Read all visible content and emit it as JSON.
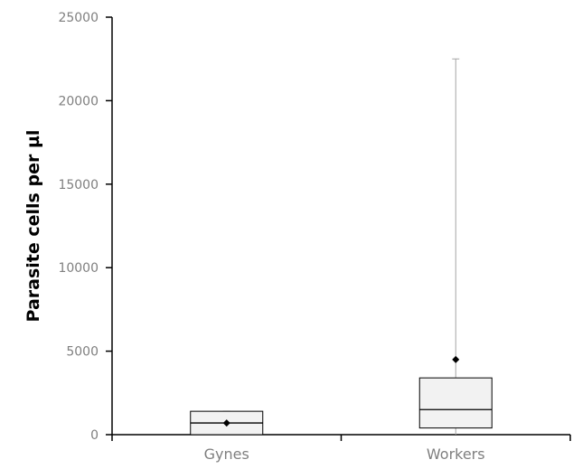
{
  "chart_data": {
    "type": "box",
    "title": "",
    "xlabel": "",
    "ylabel": "Parasite cells per µl",
    "ylim": [
      0,
      25000
    ],
    "yticks": [
      0,
      5000,
      10000,
      15000,
      20000,
      25000
    ],
    "ytick_labels": [
      "0",
      "5000",
      "10000",
      "15000",
      "20000",
      "25000"
    ],
    "grid": false,
    "categories": [
      "Gynes",
      "Workers"
    ],
    "boxes": [
      {
        "category": "Gynes",
        "min": 0,
        "q1": 0,
        "median": 700,
        "q3": 1400,
        "max": 1400,
        "mean": 700
      },
      {
        "category": "Workers",
        "min": 0,
        "q1": 400,
        "median": 1500,
        "q3": 3400,
        "max": 22500,
        "mean": 4500
      }
    ],
    "colors": {
      "box_fill": "#f2f2f2",
      "box_stroke": "#000000",
      "whisker": "#a6a6a6",
      "mean_marker": "#000000",
      "axis": "#000000",
      "tick_text": "#7f7f7f"
    }
  }
}
